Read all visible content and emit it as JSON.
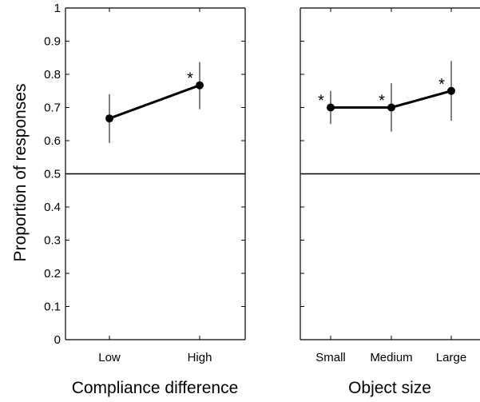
{
  "figure": {
    "ylabel": "Proportion of responses"
  },
  "chart_data": [
    {
      "type": "line",
      "categories": [
        "Low",
        "High"
      ],
      "xlabel": "Compliance difference",
      "ylabel": "Proportion of responses",
      "ylim": [
        0,
        1
      ],
      "yticks": [
        0,
        0.1,
        0.2,
        0.3,
        0.4,
        0.5,
        0.6,
        0.7,
        0.8,
        0.9,
        1
      ],
      "ytick_labels": [
        "0",
        "0.1",
        "0.2",
        "0.3",
        "0.4",
        "0.5",
        "0.6",
        "0.7",
        "0.8",
        "0.9",
        "1"
      ],
      "reference_line": 0.5,
      "grid": false,
      "series": [
        {
          "values": [
            0.667,
            0.767
          ],
          "error_low": [
            0.593,
            0.695
          ],
          "error_high": [
            0.74,
            0.837
          ],
          "significant": [
            false,
            true
          ]
        }
      ],
      "significance_marker": "*"
    },
    {
      "type": "line",
      "categories": [
        "Small",
        "Medium",
        "Large"
      ],
      "xlabel": "Object size",
      "ylim": [
        0,
        1
      ],
      "yticks": [
        0,
        0.1,
        0.2,
        0.3,
        0.4,
        0.5,
        0.6,
        0.7,
        0.8,
        0.9,
        1
      ],
      "reference_line": 0.5,
      "grid": false,
      "series": [
        {
          "values": [
            0.7,
            0.7,
            0.75
          ],
          "error_low": [
            0.65,
            0.627,
            0.66
          ],
          "error_high": [
            0.75,
            0.773,
            0.84
          ],
          "significant": [
            true,
            true,
            true
          ]
        }
      ],
      "significance_marker": "*"
    }
  ]
}
